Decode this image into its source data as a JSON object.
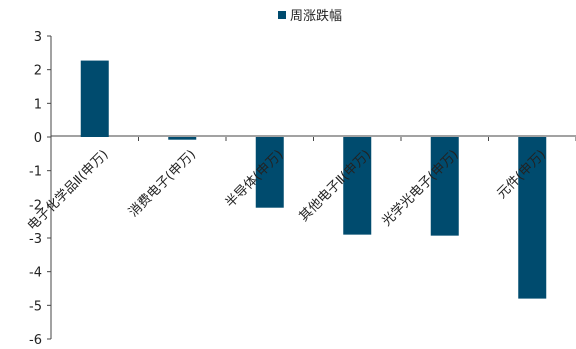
{
  "chart_data": {
    "type": "bar",
    "categories": [
      "电子化学品Ⅱ(申万)",
      "消费电子(申万)",
      "半导体(申万)",
      "其他电子Ⅱ(申万)",
      "光学光电子(申万)",
      "元件(申万)"
    ],
    "series": [
      {
        "name": "周涨跌幅",
        "values": [
          2.27,
          -0.08,
          -2.1,
          -2.9,
          -2.93,
          -4.8
        ],
        "color": "#004B6E"
      }
    ],
    "ylim": [
      -6,
      3
    ],
    "yticks": [
      "3",
      "2",
      "1",
      "0",
      "-1",
      "-2",
      "-3",
      "-4",
      "-5",
      "-6"
    ],
    "legend_position": "top",
    "grid": false
  }
}
